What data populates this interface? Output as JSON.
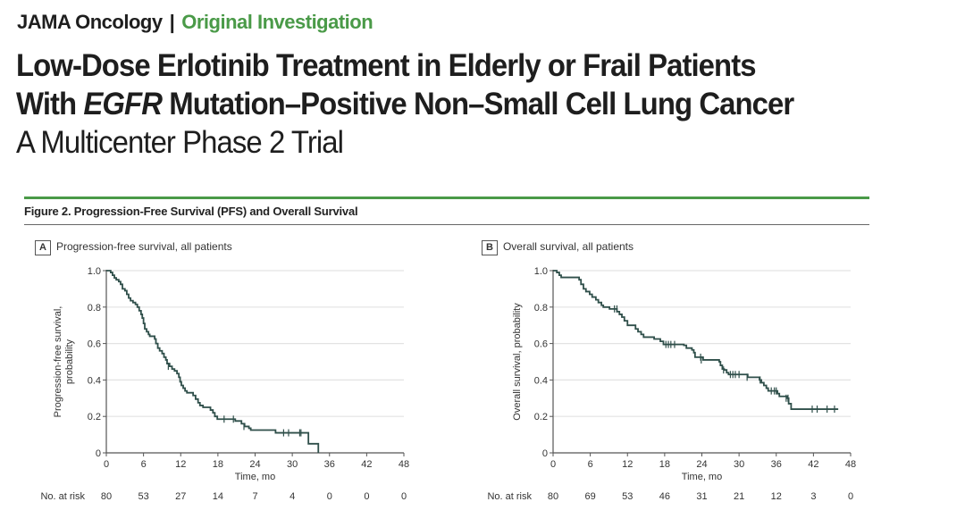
{
  "header": {
    "journal": "JAMA Oncology",
    "separator": "|",
    "section": "Original Investigation"
  },
  "article": {
    "title_line1": "Low-Dose Erlotinib Treatment in Elderly or Frail Patients",
    "title_line2_pre": "With ",
    "title_line2_italic": "EGFR",
    "title_line2_post": " Mutation–Positive Non–Small Cell Lung Cancer",
    "subtitle": "A Multicenter Phase 2 Trial"
  },
  "figure": {
    "caption": "Figure 2. Progression-Free Survival (PFS) and Overall Survival",
    "colors": {
      "accent": "#4a9a48",
      "curve": "#2f4f4a",
      "grid": "#e3e3e3"
    }
  },
  "chart_data": [
    {
      "type": "line",
      "panel": "A",
      "title": "Progression-free survival, all patients",
      "xlabel": "Time, mo",
      "ylabel": "Progression-free survival, probability",
      "ylabel_lines": [
        "Progression-free survival,",
        "probability"
      ],
      "xlim": [
        0,
        48
      ],
      "ylim": [
        0,
        1.0
      ],
      "xticks": [
        0,
        6,
        12,
        18,
        24,
        30,
        36,
        42,
        48
      ],
      "yticks": [
        0,
        0.2,
        0.4,
        0.6,
        0.8,
        1.0
      ],
      "ytick_labels": [
        "0",
        "0.2",
        "0.4",
        "0.6",
        "0.8",
        "1.0"
      ],
      "grid": true,
      "step": [
        [
          0,
          1.0
        ],
        [
          0.7,
          0.99
        ],
        [
          1.0,
          0.975
        ],
        [
          1.3,
          0.96
        ],
        [
          1.6,
          0.95
        ],
        [
          2.0,
          0.94
        ],
        [
          2.3,
          0.925
        ],
        [
          2.6,
          0.9
        ],
        [
          3.0,
          0.89
        ],
        [
          3.3,
          0.87
        ],
        [
          3.6,
          0.85
        ],
        [
          3.9,
          0.835
        ],
        [
          4.3,
          0.825
        ],
        [
          4.7,
          0.815
        ],
        [
          5.0,
          0.8
        ],
        [
          5.3,
          0.78
        ],
        [
          5.6,
          0.76
        ],
        [
          5.8,
          0.74
        ],
        [
          6.0,
          0.71
        ],
        [
          6.2,
          0.68
        ],
        [
          6.5,
          0.665
        ],
        [
          6.8,
          0.65
        ],
        [
          7.0,
          0.64
        ],
        [
          7.8,
          0.625
        ],
        [
          8.0,
          0.6
        ],
        [
          8.3,
          0.575
        ],
        [
          8.6,
          0.56
        ],
        [
          9.0,
          0.545
        ],
        [
          9.3,
          0.525
        ],
        [
          9.6,
          0.51
        ],
        [
          9.8,
          0.49
        ],
        [
          10.2,
          0.475
        ],
        [
          10.6,
          0.46
        ],
        [
          11.0,
          0.45
        ],
        [
          11.4,
          0.435
        ],
        [
          11.7,
          0.415
        ],
        [
          11.9,
          0.39
        ],
        [
          12.1,
          0.37
        ],
        [
          12.4,
          0.355
        ],
        [
          12.7,
          0.34
        ],
        [
          13.0,
          0.33
        ],
        [
          14.0,
          0.315
        ],
        [
          14.4,
          0.295
        ],
        [
          14.8,
          0.275
        ],
        [
          15.1,
          0.26
        ],
        [
          15.6,
          0.25
        ],
        [
          16.8,
          0.235
        ],
        [
          17.2,
          0.22
        ],
        [
          17.5,
          0.2
        ],
        [
          17.9,
          0.185
        ],
        [
          20.8,
          0.175
        ],
        [
          21.8,
          0.16
        ],
        [
          22.3,
          0.145
        ],
        [
          23.0,
          0.135
        ],
        [
          23.3,
          0.125
        ],
        [
          27.3,
          0.11
        ],
        [
          32.0,
          0.11
        ],
        [
          32.6,
          0.05
        ],
        [
          33.8,
          0.05
        ],
        [
          34.2,
          0
        ]
      ],
      "step_end": 34.2,
      "censor": [
        [
          10.0,
          0.475
        ],
        [
          19.0,
          0.185
        ],
        [
          20.5,
          0.185
        ],
        [
          22.2,
          0.145
        ],
        [
          28.6,
          0.11
        ],
        [
          29.4,
          0.11
        ],
        [
          31.2,
          0.11
        ],
        [
          31.4,
          0.11
        ]
      ],
      "at_risk_label": "No. at risk",
      "at_risk": [
        80,
        53,
        27,
        14,
        7,
        4,
        0,
        0,
        0
      ]
    },
    {
      "type": "line",
      "panel": "B",
      "title": "Overall survival, all patients",
      "xlabel": "Time, mo",
      "ylabel": "Overall survival, probability",
      "ylabel_lines": [
        "Overall survival, probability"
      ],
      "xlim": [
        0,
        48
      ],
      "ylim": [
        0,
        1.0
      ],
      "xticks": [
        0,
        6,
        12,
        18,
        24,
        30,
        36,
        42,
        48
      ],
      "yticks": [
        0,
        0.2,
        0.4,
        0.6,
        0.8,
        1.0
      ],
      "ytick_labels": [
        "0",
        "0.2",
        "0.4",
        "0.6",
        "0.8",
        "1.0"
      ],
      "grid": true,
      "step": [
        [
          0,
          1.0
        ],
        [
          0.6,
          0.99
        ],
        [
          1.0,
          0.975
        ],
        [
          1.3,
          0.963
        ],
        [
          4.2,
          0.95
        ],
        [
          4.5,
          0.925
        ],
        [
          4.9,
          0.9
        ],
        [
          5.3,
          0.885
        ],
        [
          5.9,
          0.87
        ],
        [
          6.3,
          0.855
        ],
        [
          6.9,
          0.84
        ],
        [
          7.3,
          0.825
        ],
        [
          7.8,
          0.81
        ],
        [
          8.1,
          0.8
        ],
        [
          9.1,
          0.79
        ],
        [
          10.3,
          0.775
        ],
        [
          10.7,
          0.76
        ],
        [
          11.1,
          0.745
        ],
        [
          11.5,
          0.725
        ],
        [
          12.0,
          0.7
        ],
        [
          13.3,
          0.68
        ],
        [
          13.7,
          0.665
        ],
        [
          14.2,
          0.65
        ],
        [
          14.6,
          0.635
        ],
        [
          16.3,
          0.625
        ],
        [
          17.3,
          0.612
        ],
        [
          17.8,
          0.595
        ],
        [
          21.1,
          0.59
        ],
        [
          21.5,
          0.575
        ],
        [
          22.4,
          0.565
        ],
        [
          22.7,
          0.55
        ],
        [
          22.9,
          0.525
        ],
        [
          24.2,
          0.51
        ],
        [
          26.8,
          0.5
        ],
        [
          27.0,
          0.48
        ],
        [
          27.3,
          0.46
        ],
        [
          27.6,
          0.455
        ],
        [
          28.0,
          0.44
        ],
        [
          28.3,
          0.43
        ],
        [
          31.4,
          0.415
        ],
        [
          33.3,
          0.4
        ],
        [
          33.6,
          0.385
        ],
        [
          34.0,
          0.37
        ],
        [
          34.4,
          0.355
        ],
        [
          34.7,
          0.34
        ],
        [
          36.2,
          0.325
        ],
        [
          36.5,
          0.31
        ],
        [
          37.8,
          0.3
        ],
        [
          38.0,
          0.27
        ],
        [
          38.4,
          0.24
        ]
      ],
      "step_end": 46,
      "censor": [
        [
          9.9,
          0.79
        ],
        [
          10.3,
          0.79
        ],
        [
          18.2,
          0.595
        ],
        [
          18.6,
          0.595
        ],
        [
          19.0,
          0.595
        ],
        [
          19.6,
          0.595
        ],
        [
          23.8,
          0.525
        ],
        [
          23.9,
          0.51
        ],
        [
          27.5,
          0.455
        ],
        [
          28.6,
          0.43
        ],
        [
          29.0,
          0.43
        ],
        [
          29.4,
          0.43
        ],
        [
          30.0,
          0.43
        ],
        [
          31.3,
          0.415
        ],
        [
          33.4,
          0.4
        ],
        [
          35.2,
          0.34
        ],
        [
          35.7,
          0.34
        ],
        [
          36.0,
          0.34
        ],
        [
          37.6,
          0.3
        ],
        [
          37.9,
          0.3
        ],
        [
          41.8,
          0.24
        ],
        [
          42.6,
          0.24
        ],
        [
          44.2,
          0.24
        ],
        [
          45.4,
          0.24
        ]
      ],
      "at_risk_label": "No. at risk",
      "at_risk": [
        80,
        69,
        53,
        46,
        31,
        21,
        12,
        3,
        0
      ]
    }
  ]
}
